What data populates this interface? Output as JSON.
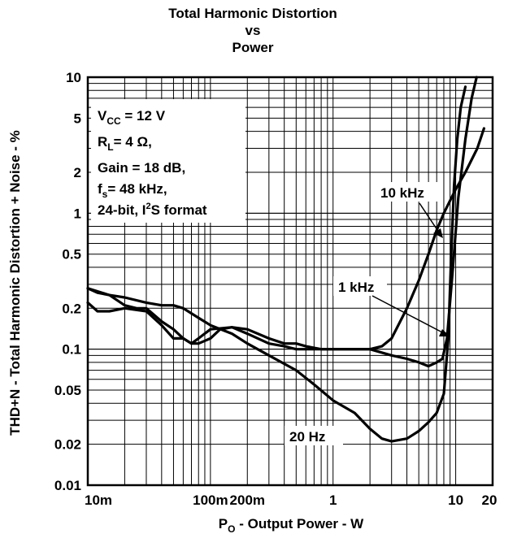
{
  "chart_data": {
    "type": "line",
    "title": "Total Harmonic Distortion",
    "title_line2": "vs",
    "title_line3": "Power",
    "xlabel_main": "P",
    "xlabel_sub": "O",
    "xlabel_rest": " - Output Power - W",
    "ylabel": "THD+N - Total Harmonic Distortion + Noise - %",
    "x_scale": "log",
    "y_scale": "log",
    "xlim": [
      0.01,
      20
    ],
    "ylim": [
      0.01,
      10
    ],
    "grid": true,
    "x_ticks": [
      {
        "value": 0.01,
        "label": "10m"
      },
      {
        "value": 0.1,
        "label": "100m"
      },
      {
        "value": 0.2,
        "label": "200m"
      },
      {
        "value": 1,
        "label": "1"
      },
      {
        "value": 10,
        "label": "10"
      },
      {
        "value": 20,
        "label": "20"
      }
    ],
    "y_ticks": [
      {
        "value": 0.01,
        "label": "0.01"
      },
      {
        "value": 0.02,
        "label": "0.02"
      },
      {
        "value": 0.05,
        "label": "0.05"
      },
      {
        "value": 0.1,
        "label": "0.1"
      },
      {
        "value": 0.2,
        "label": "0.2"
      },
      {
        "value": 0.5,
        "label": "0.5"
      },
      {
        "value": 1,
        "label": "1"
      },
      {
        "value": 2,
        "label": "2"
      },
      {
        "value": 5,
        "label": "5"
      },
      {
        "value": 10,
        "label": "10"
      }
    ],
    "conditions": {
      "vcc_main": "V",
      "vcc_sub": "CC",
      "vcc_value": " = 12 V",
      "rl_main": "R",
      "rl_sub": "L",
      "rl_value": "= 4 Ω,",
      "gain": "Gain = 18 dB,",
      "fs_main": "f",
      "fs_sub": "s",
      "fs_value": "= 48 kHz,",
      "format_pre": "24-bit, I",
      "format_sup": "2",
      "format_post": "S format"
    },
    "series": [
      {
        "name": "10 kHz",
        "points": [
          [
            0.01,
            0.28
          ],
          [
            0.012,
            0.26
          ],
          [
            0.015,
            0.25
          ],
          [
            0.02,
            0.21
          ],
          [
            0.025,
            0.2
          ],
          [
            0.03,
            0.2
          ],
          [
            0.04,
            0.16
          ],
          [
            0.05,
            0.14
          ],
          [
            0.06,
            0.12
          ],
          [
            0.07,
            0.11
          ],
          [
            0.08,
            0.11
          ],
          [
            0.1,
            0.12
          ],
          [
            0.12,
            0.14
          ],
          [
            0.15,
            0.145
          ],
          [
            0.2,
            0.14
          ],
          [
            0.3,
            0.12
          ],
          [
            0.4,
            0.11
          ],
          [
            0.5,
            0.11
          ],
          [
            0.6,
            0.105
          ],
          [
            0.8,
            0.1
          ],
          [
            1,
            0.1
          ],
          [
            1.5,
            0.1
          ],
          [
            2,
            0.1
          ],
          [
            2.5,
            0.105
          ],
          [
            3,
            0.12
          ],
          [
            4,
            0.2
          ],
          [
            5,
            0.32
          ],
          [
            6,
            0.5
          ],
          [
            7,
            0.75
          ],
          [
            8,
            1.0
          ],
          [
            10,
            1.5
          ],
          [
            12,
            2.0
          ],
          [
            15,
            3.0
          ],
          [
            17,
            4.2
          ]
        ]
      },
      {
        "name": "1 kHz",
        "points": [
          [
            0.01,
            0.22
          ],
          [
            0.012,
            0.19
          ],
          [
            0.015,
            0.19
          ],
          [
            0.02,
            0.2
          ],
          [
            0.03,
            0.19
          ],
          [
            0.04,
            0.15
          ],
          [
            0.05,
            0.12
          ],
          [
            0.06,
            0.12
          ],
          [
            0.07,
            0.11
          ],
          [
            0.08,
            0.12
          ],
          [
            0.1,
            0.14
          ],
          [
            0.15,
            0.145
          ],
          [
            0.2,
            0.13
          ],
          [
            0.3,
            0.11
          ],
          [
            0.4,
            0.105
          ],
          [
            0.5,
            0.1
          ],
          [
            0.7,
            0.1
          ],
          [
            1,
            0.1
          ],
          [
            1.5,
            0.1
          ],
          [
            2,
            0.1
          ],
          [
            3,
            0.09
          ],
          [
            4,
            0.085
          ],
          [
            5,
            0.08
          ],
          [
            6,
            0.075
          ],
          [
            7,
            0.08
          ],
          [
            7.8,
            0.085
          ],
          [
            8.5,
            0.12
          ],
          [
            9.5,
            0.4
          ],
          [
            10.5,
            1.3
          ],
          [
            12,
            3.5
          ],
          [
            13.5,
            7.0
          ],
          [
            14.8,
            10.0
          ]
        ]
      },
      {
        "name": "20 Hz",
        "points": [
          [
            0.01,
            0.28
          ],
          [
            0.015,
            0.25
          ],
          [
            0.02,
            0.24
          ],
          [
            0.03,
            0.22
          ],
          [
            0.04,
            0.21
          ],
          [
            0.05,
            0.21
          ],
          [
            0.06,
            0.2
          ],
          [
            0.08,
            0.17
          ],
          [
            0.1,
            0.15
          ],
          [
            0.15,
            0.13
          ],
          [
            0.2,
            0.11
          ],
          [
            0.3,
            0.09
          ],
          [
            0.5,
            0.07
          ],
          [
            0.7,
            0.055
          ],
          [
            1,
            0.042
          ],
          [
            1.5,
            0.034
          ],
          [
            2,
            0.026
          ],
          [
            2.5,
            0.022
          ],
          [
            3,
            0.021
          ],
          [
            4,
            0.022
          ],
          [
            5,
            0.025
          ],
          [
            6,
            0.029
          ],
          [
            7,
            0.034
          ],
          [
            8,
            0.047
          ],
          [
            8.7,
            0.12
          ],
          [
            9.2,
            0.5
          ],
          [
            9.7,
            1.6
          ],
          [
            10.3,
            3.5
          ],
          [
            11,
            6.0
          ],
          [
            12,
            8.5
          ]
        ]
      }
    ],
    "series_labels": [
      {
        "name": "10 kHz",
        "text": "10 kHz"
      },
      {
        "name": "1 kHz",
        "text": "1 kHz"
      },
      {
        "name": "20 Hz",
        "text": "20 Hz"
      }
    ]
  }
}
